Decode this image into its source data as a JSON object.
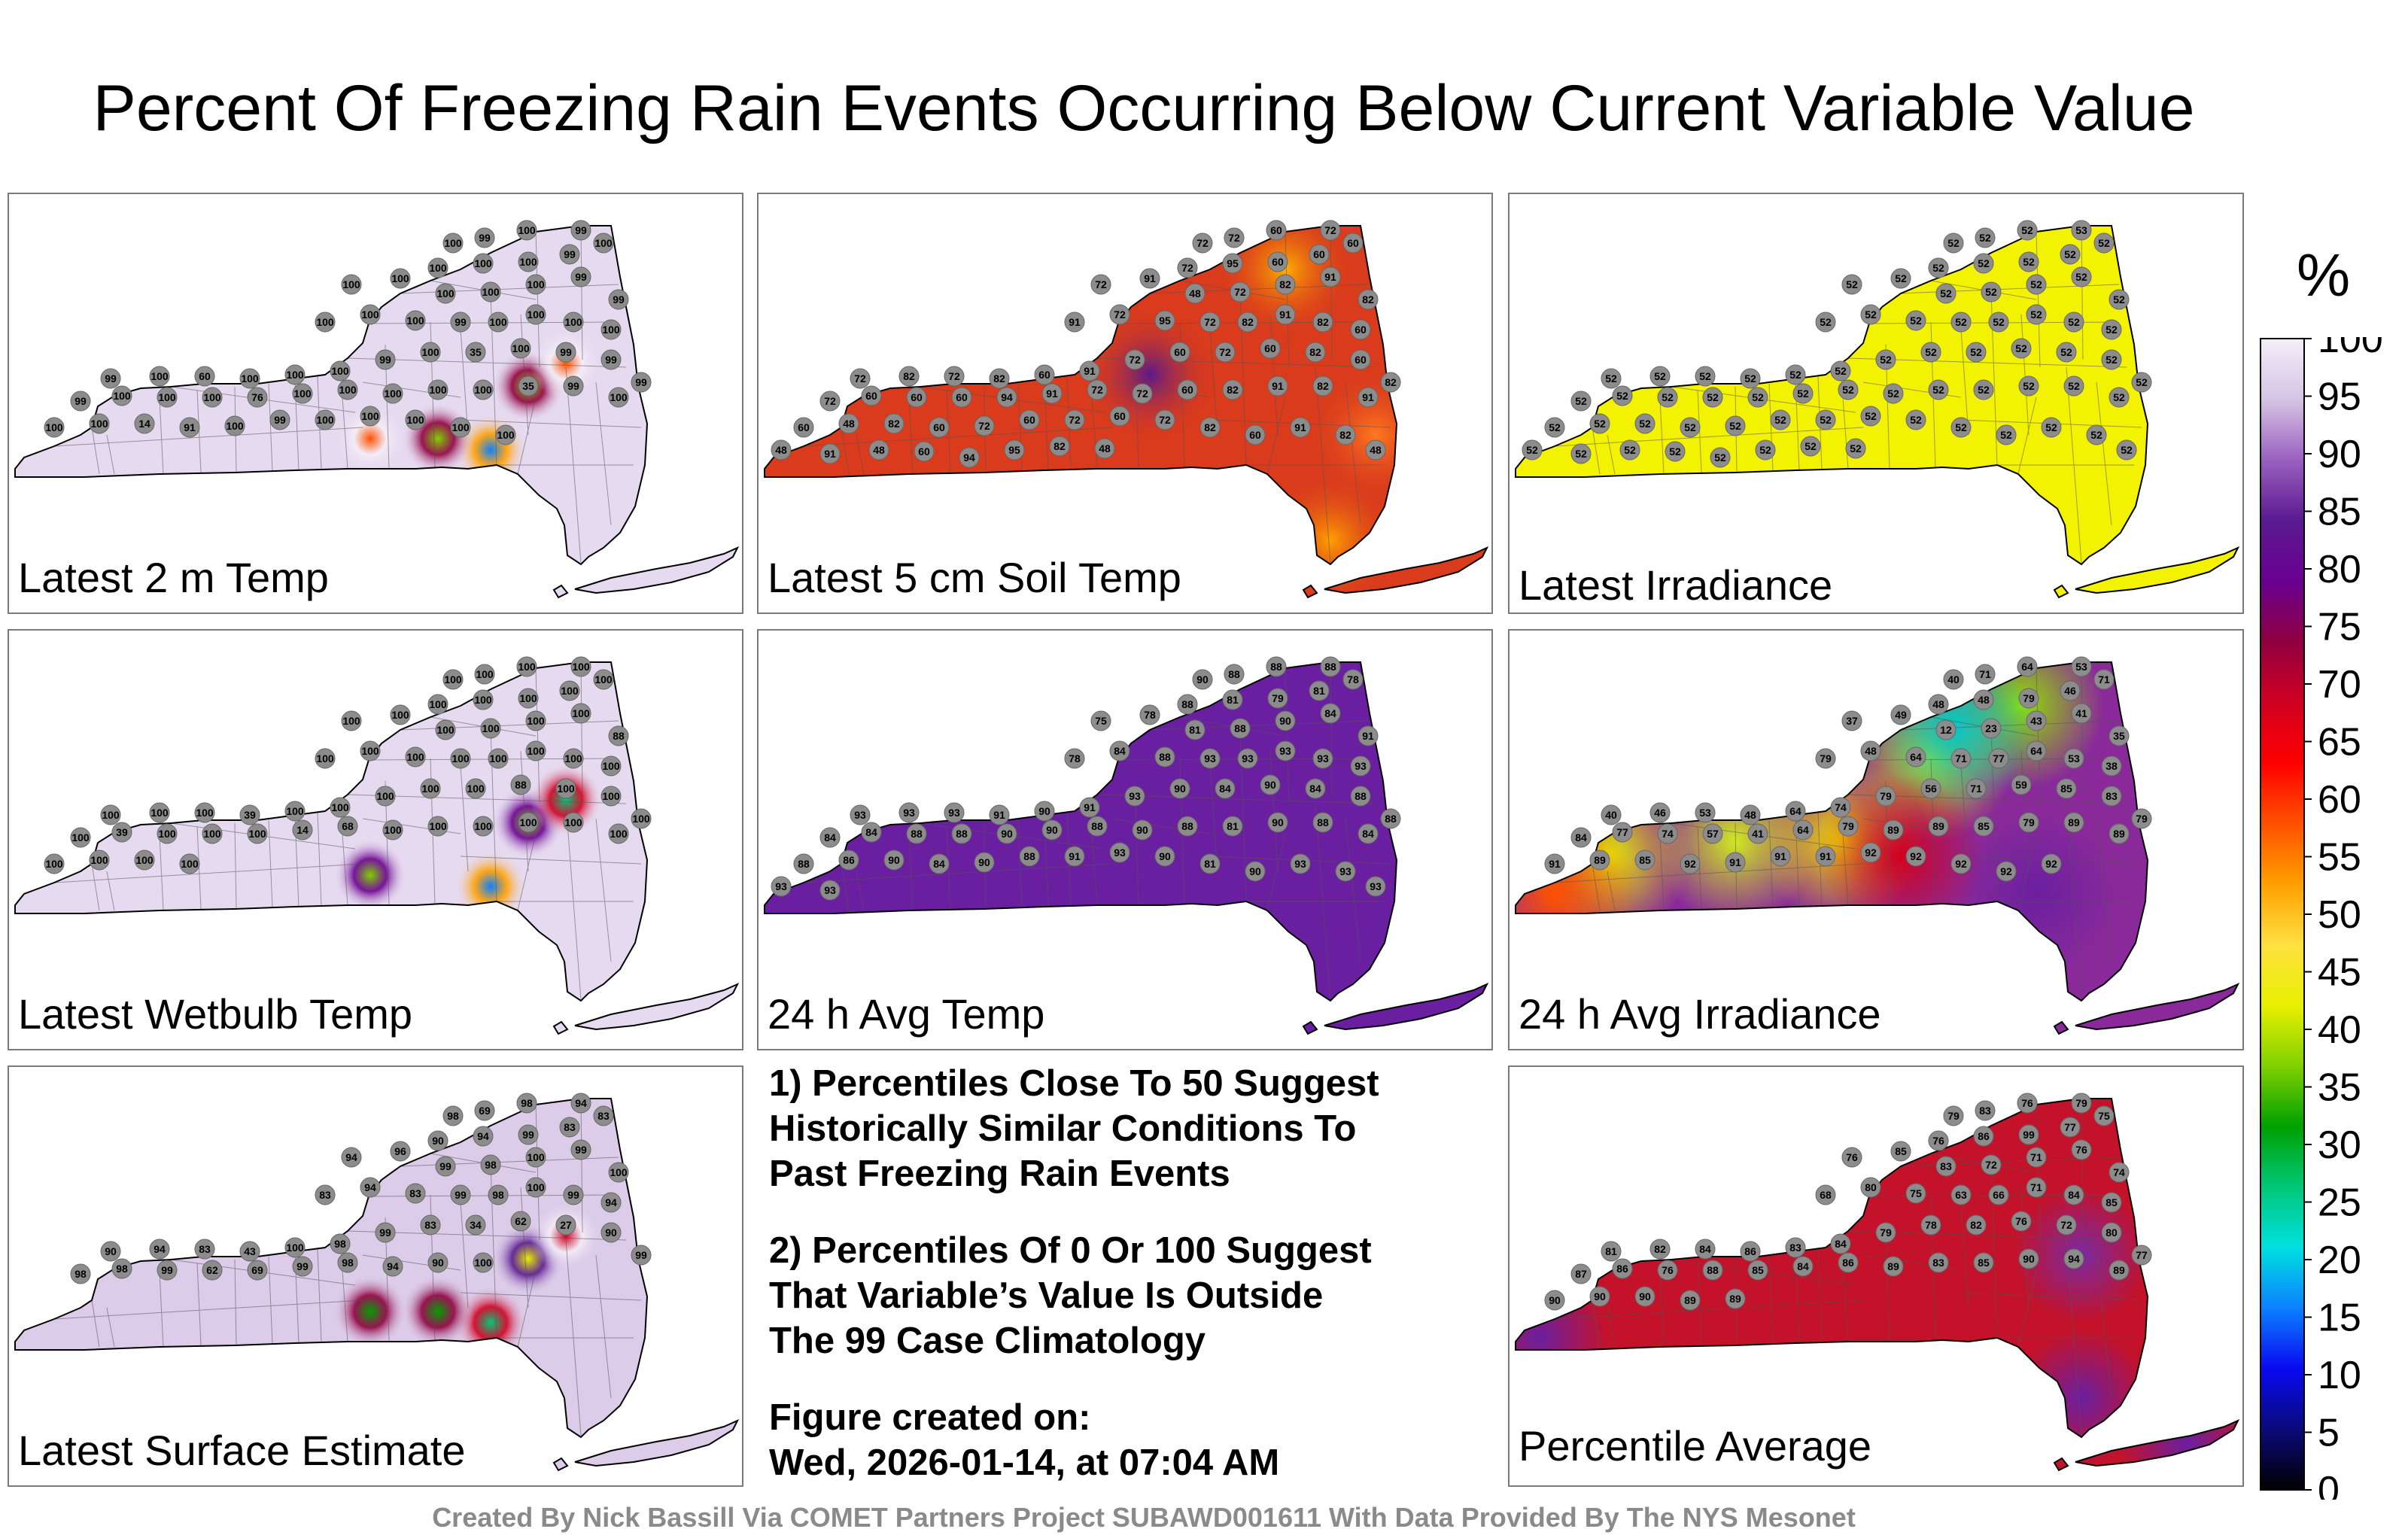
{
  "title": "Percent Of Freezing Rain Events Occurring Below Current Variable Value",
  "colors": {
    "panel_border": "#7a7a7a",
    "map_outline": "#000000",
    "county_lines": "#555555",
    "station_marker": "#8c8c8c",
    "credit_text": "#8a8a8a"
  },
  "panels": [
    {
      "id": "temp2m",
      "label": "Latest 2 m Temp",
      "fill": "#e6daf0",
      "hotspots": [
        {
          "loc": "albany",
          "v": 35
        },
        {
          "loc": "hudson",
          "v": 14
        },
        {
          "loc": "cny",
          "v": 60
        },
        {
          "loc": "se-cats",
          "v": 35
        },
        {
          "loc": "east-mid",
          "v": 60
        }
      ],
      "stations": [
        100,
        99,
        100,
        99,
        100,
        100,
        100,
        99,
        100,
        100,
        100,
        100,
        100,
        100,
        99,
        99,
        100,
        100,
        100,
        99,
        100,
        100,
        100,
        100,
        99,
        100,
        60,
        100,
        100,
        100,
        99,
        100,
        35,
        100,
        99,
        99,
        99,
        99,
        100,
        100,
        100,
        76,
        100,
        100,
        100,
        100,
        100,
        35,
        99,
        100,
        100,
        100,
        14,
        91,
        100,
        99,
        100,
        100,
        100,
        100,
        100
      ]
    },
    {
      "id": "soil5",
      "label": "Latest 5 cm Soil Temp",
      "fill": "#d93b1c",
      "hotspots": [],
      "stations": [
        72,
        72,
        60,
        72,
        72,
        95,
        60,
        60,
        60,
        72,
        91,
        48,
        72,
        82,
        91,
        82,
        91,
        72,
        95,
        72,
        82,
        91,
        82,
        60,
        72,
        82,
        72,
        82,
        60,
        91,
        72,
        60,
        72,
        60,
        82,
        60,
        82,
        72,
        60,
        60,
        60,
        94,
        91,
        72,
        72,
        60,
        82,
        91,
        82,
        91,
        60,
        48,
        82,
        60,
        72,
        60,
        72,
        60,
        72,
        82,
        60,
        91,
        82,
        48,
        48,
        91,
        48,
        60,
        94,
        95,
        82,
        48
      ]
    },
    {
      "id": "irr",
      "label": "Latest Irradiance",
      "fill": "#f3f200",
      "hotspots": [],
      "stations": [
        52,
        52,
        52,
        53,
        52,
        52,
        52,
        52,
        52,
        52,
        52,
        52,
        52,
        52,
        52,
        52,
        52,
        52,
        52,
        52,
        52,
        52,
        52,
        52,
        52,
        52,
        52,
        52,
        52,
        52,
        52,
        52,
        52,
        52,
        52,
        52,
        52,
        52,
        52,
        52,
        52,
        52,
        52,
        52,
        52,
        52,
        52,
        52,
        52,
        52,
        52,
        52,
        52,
        52,
        52,
        52,
        52,
        52,
        52,
        52,
        52,
        52,
        52,
        52,
        52,
        52,
        52,
        52,
        52,
        52,
        52,
        52
      ]
    },
    {
      "id": "wetbulb",
      "label": "Latest Wetbulb Temp",
      "fill": "#e6daf0",
      "hotspots": [
        {
          "loc": "albany",
          "v": 39
        },
        {
          "loc": "hudson",
          "v": 14
        },
        {
          "loc": "cny",
          "v": 39
        },
        {
          "loc": "east-mid",
          "v": 27
        }
      ],
      "stations": [
        100,
        100,
        100,
        100,
        100,
        100,
        100,
        100,
        100,
        100,
        100,
        100,
        100,
        100,
        100,
        88,
        100,
        100,
        100,
        100,
        100,
        100,
        100,
        100,
        100,
        100,
        100,
        39,
        100,
        100,
        100,
        100,
        100,
        88,
        100,
        100,
        100,
        100,
        39,
        100,
        100,
        100,
        14,
        68,
        100,
        100,
        100,
        100,
        100,
        100,
        100,
        100,
        100,
        100
      ]
    },
    {
      "id": "avgtemp",
      "label": "24 h Avg Temp",
      "fill": "#6a1fa0",
      "hotspots": [],
      "stations": [
        90,
        88,
        88,
        88,
        88,
        81,
        79,
        81,
        78,
        75,
        78,
        81,
        88,
        90,
        84,
        91,
        78,
        84,
        88,
        93,
        93,
        93,
        93,
        93,
        93,
        93,
        93,
        91,
        90,
        91,
        93,
        90,
        84,
        90,
        84,
        88,
        88,
        84,
        84,
        88,
        88,
        90,
        90,
        88,
        90,
        88,
        81,
        90,
        88,
        84,
        88,
        86,
        90,
        84,
        90,
        88,
        91,
        93,
        90,
        81,
        90,
        93,
        93,
        93,
        93,
        93
      ]
    },
    {
      "id": "avgirr",
      "label": "24 h Avg Irradiance",
      "fill": "#8a2a9a",
      "hotspots": [],
      "stations": [
        40,
        71,
        64,
        53,
        48,
        48,
        79,
        46,
        71,
        37,
        49,
        12,
        23,
        43,
        41,
        35,
        79,
        48,
        64,
        71,
        77,
        64,
        53,
        38,
        40,
        46,
        53,
        48,
        64,
        74,
        79,
        56,
        71,
        59,
        85,
        83,
        79,
        84,
        77,
        74,
        57,
        41,
        64,
        79,
        89,
        89,
        85,
        79,
        89,
        89,
        91,
        89,
        85,
        92,
        91,
        91,
        91,
        92,
        92,
        92,
        92,
        92
      ]
    },
    {
      "id": "surf",
      "label": "Latest Surface Estimate",
      "fill": "#dccbe9",
      "hotspots": [
        {
          "loc": "albany",
          "v": 43
        },
        {
          "loc": "hudson",
          "v": 27
        },
        {
          "loc": "cny",
          "v": 33
        },
        {
          "loc": "se-cats",
          "v": 34
        },
        {
          "loc": "east-mid",
          "v": 69
        }
      ],
      "stations": [
        98,
        69,
        98,
        94,
        90,
        94,
        99,
        83,
        83,
        94,
        96,
        99,
        98,
        100,
        99,
        100,
        83,
        94,
        83,
        99,
        98,
        100,
        99,
        94,
        90,
        94,
        83,
        43,
        100,
        98,
        99,
        83,
        34,
        62,
        27,
        90,
        99,
        98,
        98,
        99,
        62,
        69,
        99,
        98,
        94,
        90,
        100
      ]
    },
    {
      "id": "avg",
      "label": "Percentile Average",
      "fill": "#c4122a",
      "hotspots": [],
      "stations": [
        79,
        83,
        76,
        79,
        76,
        86,
        99,
        77,
        75,
        76,
        85,
        83,
        72,
        71,
        76,
        74,
        68,
        80,
        75,
        63,
        66,
        71,
        84,
        85,
        81,
        82,
        84,
        86,
        83,
        84,
        79,
        78,
        82,
        76,
        72,
        80,
        77,
        87,
        86,
        76,
        88,
        85,
        84,
        86,
        89,
        83,
        85,
        90,
        94,
        89,
        90,
        90,
        90,
        89,
        89
      ]
    }
  ],
  "notes": {
    "line1": "1) Percentiles Close To 50 Suggest",
    "line2": "Historically Similar Conditions To",
    "line3": "Past Freezing Rain Events",
    "line4": "2) Percentiles Of 0 Or 100 Suggest",
    "line5": "That Variable’s Value Is Outside",
    "line6": "The 99 Case Climatology",
    "fig_label": "Figure created on:",
    "fig_date": "Wed, 2026-01-14, at 07:04 AM"
  },
  "colorbar": {
    "unit": "%",
    "ticks": [
      "100",
      "95",
      "90",
      "85",
      "80",
      "75",
      "70",
      "65",
      "60",
      "55",
      "50",
      "45",
      "40",
      "35",
      "30",
      "25",
      "20",
      "15",
      "10",
      "5",
      "0"
    ],
    "stops": [
      "#000000",
      "#0a0a7a",
      "#0a0af0",
      "#0b80ff",
      "#00e0e0",
      "#00c878",
      "#00a000",
      "#80d000",
      "#e8f000",
      "#ffe040",
      "#ffa000",
      "#ff5000",
      "#ff0000",
      "#d00020",
      "#900040",
      "#6a0090",
      "#5a1a90",
      "#9a60c0",
      "#d6c4e4",
      "#f4eef8"
    ]
  },
  "credit": "Created By Nick Bassill Via COMET Partners Project SUBAWD001611 With Data Provided By The NYS Mesonet"
}
